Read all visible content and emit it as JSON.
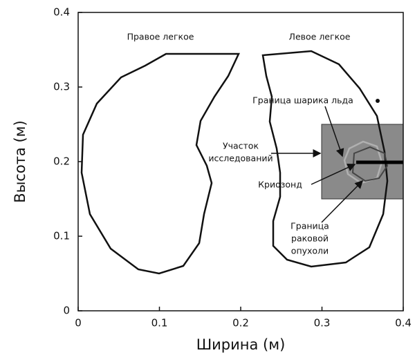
{
  "chart_data": {
    "type": "diagram",
    "xlabel": "Ширина (м)",
    "ylabel": "Высота (м)",
    "xlim": [
      0,
      0.4
    ],
    "ylim": [
      0,
      0.4
    ],
    "xticks": [
      0,
      0.1,
      0.2,
      0.3,
      0.4
    ],
    "yticks": [
      0,
      0.1,
      0.2,
      0.3,
      0.4
    ],
    "annotations": [
      [
        "Правое легкое"
      ],
      [
        "Левое легкое"
      ],
      [
        "Граница шарика льда"
      ],
      [
        "Участок",
        "исследований"
      ],
      [
        "Криозонд"
      ],
      [
        "Граница",
        "раковой",
        "опухоли"
      ]
    ]
  }
}
